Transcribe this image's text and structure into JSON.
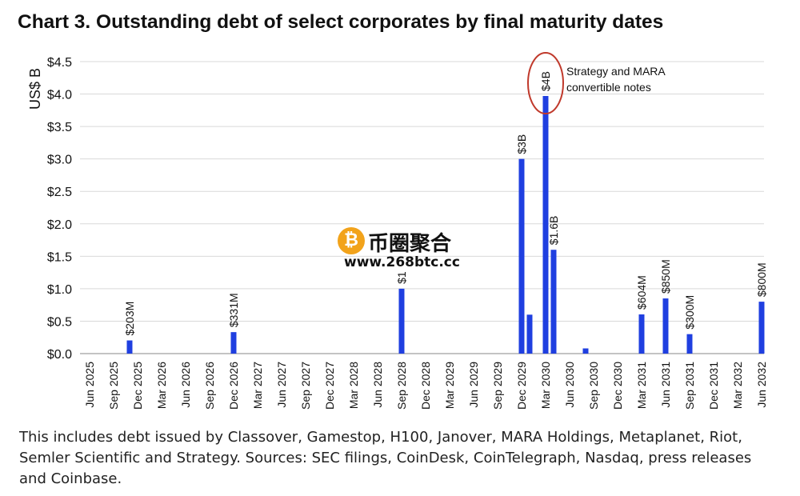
{
  "title": "Chart 3. Outstanding debt of select corporates by final maturity dates",
  "footnote": "This includes debt issued by Classover, Gamestop, H100, Janover, MARA Holdings, Metaplanet, Riot, Semler Scientific and Strategy. Sources: SEC filings, CoinDesk, CoinTelegraph, Nasdaq, press releases and Coinbase.",
  "watermark": {
    "coin_symbol": "₿",
    "text": "币圈聚合",
    "url": "www.268btc.cc"
  },
  "colors": {
    "bar": "#1f3fe0",
    "highlight": "#c0392b",
    "grid": "#d9d9d9"
  },
  "chart_data": {
    "type": "bar",
    "title": "Chart 3. Outstanding debt of select corporates by final maturity dates",
    "ylabel": "US$ B",
    "xlabel": "",
    "ylim": [
      0,
      4.5
    ],
    "yticks": [
      0,
      0.5,
      1.0,
      1.5,
      2.0,
      2.5,
      3.0,
      3.5,
      4.0,
      4.5
    ],
    "ytick_labels": [
      "$0.0",
      "$0.5",
      "$1.0",
      "$1.5",
      "$2.0",
      "$2.5",
      "$3.0",
      "$3.5",
      "$4.0",
      "$4.5"
    ],
    "grid": "horizontal",
    "x_axis_labels": [
      "Jun 2025",
      "Sep 2025",
      "Dec 2025",
      "Mar 2026",
      "Jun 2026",
      "Sep 2026",
      "Dec 2026",
      "Mar 2027",
      "Jun 2027",
      "Sep 2027",
      "Dec 2027",
      "Mar 2028",
      "Jun 2028",
      "Sep 2028",
      "Dec 2028",
      "Mar 2029",
      "Jun 2029",
      "Sep 2029",
      "Dec 2029",
      "Mar 2030",
      "Jun 2030",
      "Sep 2030",
      "Dec 2030",
      "Mar 2031",
      "Jun 2031",
      "Sep 2031",
      "Dec 2031",
      "Mar 2032",
      "Jun 2032"
    ],
    "bars": [
      {
        "x": "Nov 2025",
        "value": 0.203,
        "label": "$203M"
      },
      {
        "x": "Dec 2026",
        "value": 0.331,
        "label": "$331M"
      },
      {
        "x": "Sep 2028",
        "value": 1.0,
        "label": "$1"
      },
      {
        "x": "Dec 2029",
        "value": 3.0,
        "label": "$3B"
      },
      {
        "x": "Jan 2030",
        "value": 0.6,
        "label": ""
      },
      {
        "x": "Mar 2030",
        "value": 3.97,
        "label": "$4B"
      },
      {
        "x": "Apr 2030",
        "value": 1.6,
        "label": "$1.6B"
      },
      {
        "x": "Aug 2030",
        "value": 0.08,
        "label": ""
      },
      {
        "x": "Mar 2031",
        "value": 0.604,
        "label": "$604M"
      },
      {
        "x": "Jun 2031",
        "value": 0.85,
        "label": "$850M"
      },
      {
        "x": "Sep 2031",
        "value": 0.3,
        "label": "$300M"
      },
      {
        "x": "Jun 2032",
        "value": 0.8,
        "label": "$800M"
      }
    ],
    "annotations": [
      {
        "text": "Strategy and MARA convertible notes",
        "lines": [
          "Strategy and MARA",
          "convertible notes"
        ],
        "target": "Mar 2030",
        "highlight": "circle"
      }
    ]
  }
}
